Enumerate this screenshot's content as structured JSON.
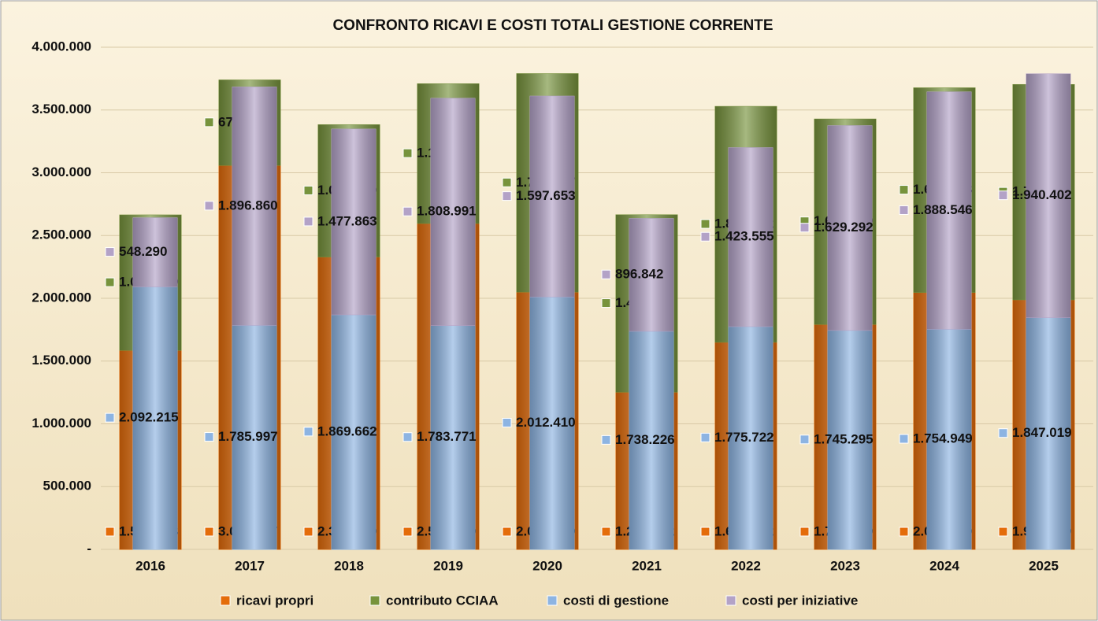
{
  "chart_data": {
    "type": "bar",
    "stacked": true,
    "title": "CONFRONTO RICAVI E COSTI TOTALI GESTIONE CORRENTE",
    "categories": [
      "2016",
      "2017",
      "2018",
      "2019",
      "2020",
      "2021",
      "2022",
      "2023",
      "2024",
      "2025"
    ],
    "ylim": [
      0,
      4000000
    ],
    "yticks": [
      {
        "value": 0,
        "label": "-"
      },
      {
        "value": 500000,
        "label": "500.000"
      },
      {
        "value": 1000000,
        "label": "1.000.000"
      },
      {
        "value": 1500000,
        "label": "1.500.000"
      },
      {
        "value": 2000000,
        "label": "2.000.000"
      },
      {
        "value": 2500000,
        "label": "2.500.000"
      },
      {
        "value": 3000000,
        "label": "3.000.000"
      },
      {
        "value": 3500000,
        "label": "3.500.000"
      },
      {
        "value": 4000000,
        "label": "4.000.000"
      }
    ],
    "grid": true,
    "series": [
      {
        "name": "ricavi propri",
        "color": "#e46c0a",
        "stack": "ricavi",
        "values": [
          1585933,
          3059527,
          2329810,
          2596990,
          2050369,
          1253052,
          1650512,
          1792699,
          2047230,
          1988919
        ],
        "value_labels": [
          "1.585.933",
          "3.059.527",
          "2.329.810",
          "2.596.990",
          "2.050.369",
          "1.253.052",
          "1.650.512",
          "1.792.699",
          "2.047.230",
          "1.988.919"
        ]
      },
      {
        "name": "contributo CCIAA",
        "color": "#77933c",
        "stack": "ricavi",
        "values": [
          1077619,
          679173,
          1052440,
          1111485,
          1738687,
          1411678,
          1877442,
          1634919,
          1628708,
          1713426
        ],
        "value_labels": [
          "1.077.619",
          "679.173",
          "1.052.440",
          "1.111.485",
          "1.738.687",
          "1.411.678",
          "1.877.442",
          "1.634.919",
          "1.628.708",
          "1.713.426"
        ]
      },
      {
        "name": "costi di gestione",
        "color": "#8db4e2",
        "stack": "costi",
        "values": [
          2092215,
          1785997,
          1869662,
          1783771,
          2012410,
          1738226,
          1775722,
          1745295,
          1754949,
          1847019
        ],
        "value_labels": [
          "2.092.215",
          "1.785.997",
          "1.869.662",
          "1.783.771",
          "2.012.410",
          "1.738.226",
          "1.775.722",
          "1.745.295",
          "1.754.949",
          "1.847.019"
        ]
      },
      {
        "name": "costi per iniziative",
        "color": "#b3a2c7",
        "stack": "costi",
        "values": [
          548290,
          1896860,
          1477863,
          1808991,
          1597653,
          896842,
          1423555,
          1629292,
          1888546,
          1940402
        ],
        "value_labels": [
          "548.290",
          "1.896.860",
          "1.477.863",
          "1.808.991",
          "1.597.653",
          "896.842",
          "1.423.555",
          "1.629.292",
          "1.888.546",
          "1.940.402"
        ]
      }
    ]
  }
}
